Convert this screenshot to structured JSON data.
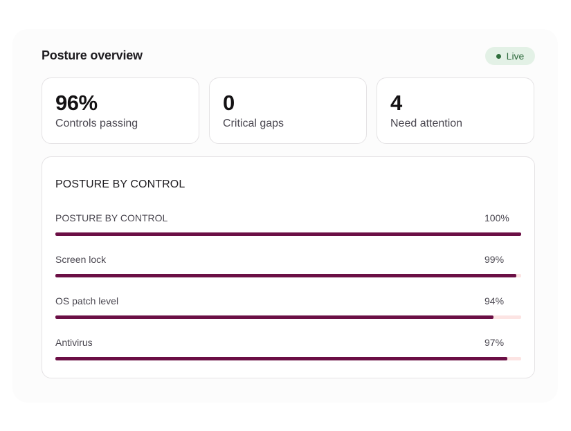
{
  "header": {
    "title": "Posture overview",
    "live_label": "Live"
  },
  "stats": [
    {
      "value": "96%",
      "label": "Controls passing"
    },
    {
      "value": "0",
      "label": "Critical gaps"
    },
    {
      "value": "4",
      "label": "Need attention"
    }
  ],
  "panel": {
    "title": "POSTURE BY CONTROL",
    "rows": [
      {
        "name": "POSTURE BY CONTROL",
        "pct_label": "100%",
        "value": 100
      },
      {
        "name": "Screen lock",
        "pct_label": "99%",
        "value": 99
      },
      {
        "name": "OS patch level",
        "pct_label": "94%",
        "value": 94
      },
      {
        "name": "Antivirus",
        "pct_label": "97%",
        "value": 97
      }
    ]
  },
  "colors": {
    "bar_fill": "#6b0f45",
    "bar_track": "#fce4e3",
    "live_bg": "#e3f1e6",
    "live_text": "#2d6a3c"
  }
}
